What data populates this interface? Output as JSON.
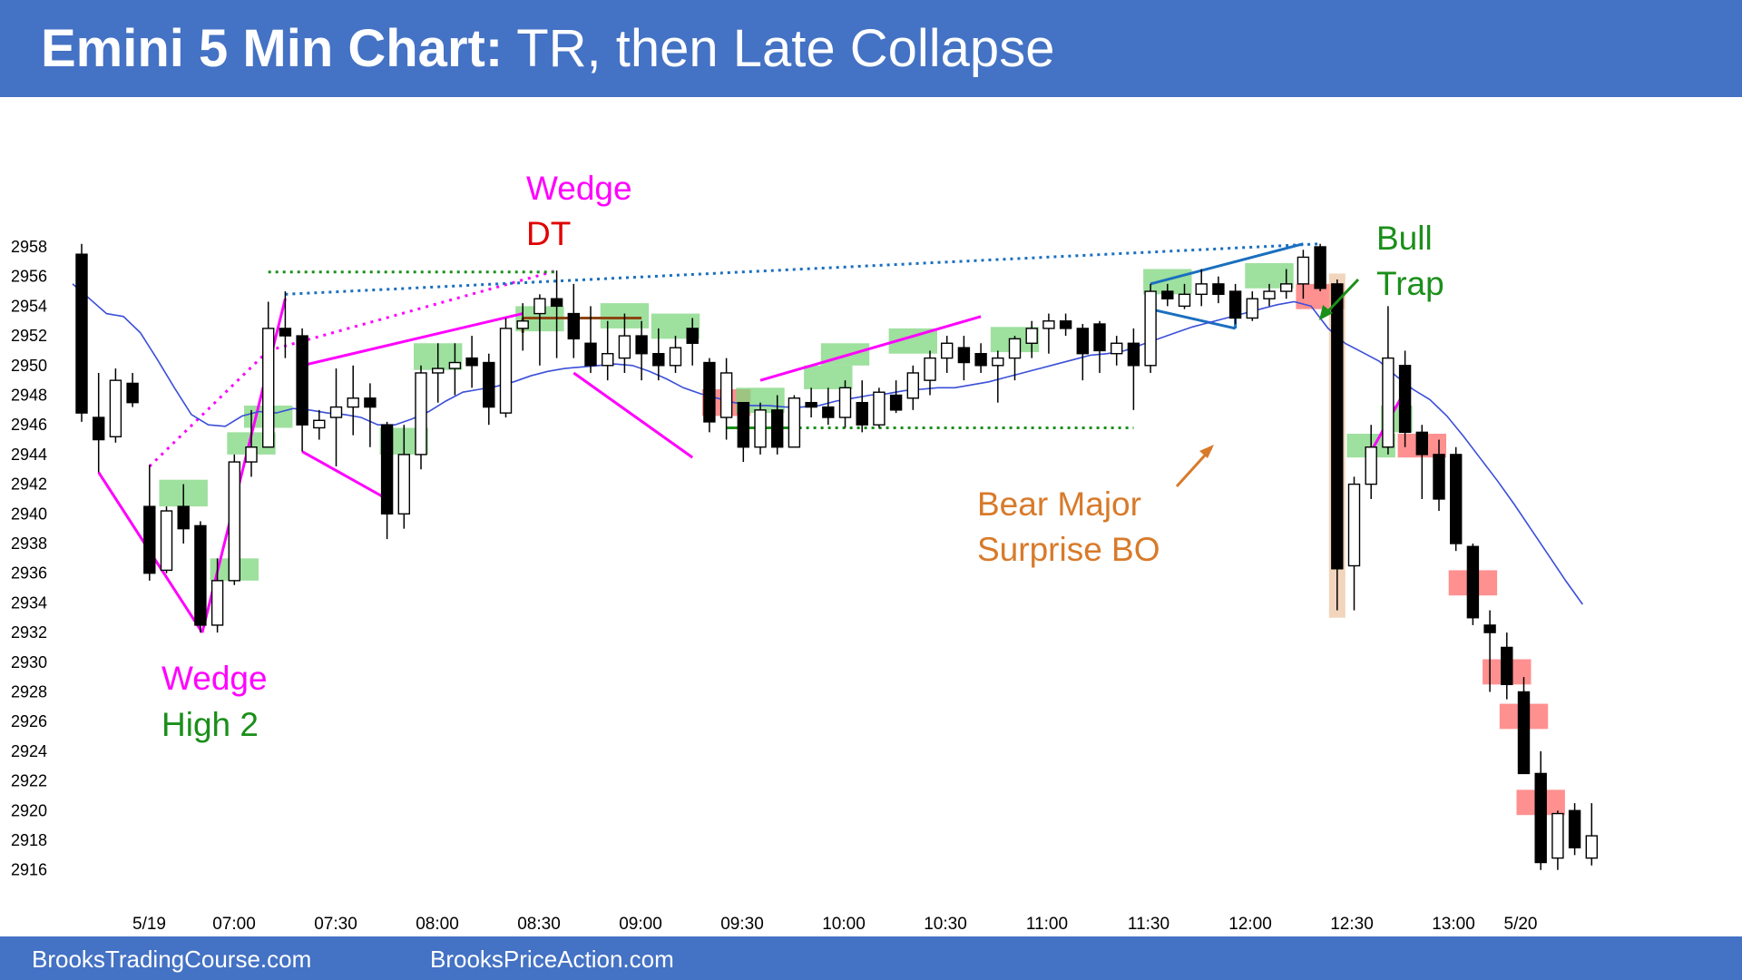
{
  "title": {
    "bold": "Emini 5 Min Chart:",
    "rest": " TR, then Late Collapse"
  },
  "footer": {
    "left": "BrooksTradingCourse.com",
    "right": "BrooksPriceAction.com"
  },
  "colors": {
    "header": "#4472c4",
    "bull_highlight": "#7ed67e",
    "bear_highlight": "#ff6b6b",
    "ema": "#3a4fd8",
    "annotation_magenta": "#ff00ff",
    "annotation_green": "#1a8f1a",
    "annotation_red": "#e00000",
    "annotation_orange": "#d87a2a",
    "trendline_blue": "#1a6fbf"
  },
  "chart_data": {
    "type": "candlestick",
    "instrument": "Emini",
    "timeframe": "5 Min",
    "y_ticks": [
      2958,
      2956,
      2954,
      2952,
      2950,
      2948,
      2946,
      2944,
      2942,
      2940,
      2938,
      2936,
      2934,
      2932,
      2930,
      2928,
      2926,
      2924,
      2922,
      2920,
      2918,
      2916
    ],
    "x_ticks": [
      "5/19",
      "07:00",
      "07:30",
      "08:00",
      "08:30",
      "09:00",
      "09:30",
      "10:00",
      "10:30",
      "11:00",
      "11:30",
      "12:00",
      "12:30",
      "13:00",
      "5/20"
    ],
    "candles": [
      {
        "o": 2957.5,
        "h": 2958.2,
        "l": 2946.2,
        "c": 2946.8
      },
      {
        "o": 2946.5,
        "h": 2949.5,
        "l": 2942.8,
        "c": 2945.0
      },
      {
        "o": 2945.2,
        "h": 2949.8,
        "l": 2944.8,
        "c": 2949.0
      },
      {
        "o": 2948.8,
        "h": 2949.5,
        "l": 2947.2,
        "c": 2947.5
      },
      {
        "o": 2940.5,
        "h": 2943.3,
        "l": 2935.5,
        "c": 2936.0
      },
      {
        "o": 2936.2,
        "h": 2940.5,
        "l": 2936.0,
        "c": 2940.2
      },
      {
        "o": 2940.5,
        "h": 2942.0,
        "l": 2938.0,
        "c": 2939.0
      },
      {
        "o": 2939.2,
        "h": 2939.5,
        "l": 2932.0,
        "c": 2932.5
      },
      {
        "o": 2932.5,
        "h": 2937.0,
        "l": 2932.0,
        "c": 2935.5
      },
      {
        "o": 2935.5,
        "h": 2944.0,
        "l": 2935.2,
        "c": 2943.5
      },
      {
        "o": 2943.5,
        "h": 2947.0,
        "l": 2942.5,
        "c": 2944.5
      },
      {
        "o": 2944.5,
        "h": 2954.3,
        "l": 2944.5,
        "c": 2952.5
      },
      {
        "o": 2952.5,
        "h": 2955.0,
        "l": 2950.5,
        "c": 2952.0
      },
      {
        "o": 2952.0,
        "h": 2952.5,
        "l": 2944.2,
        "c": 2946.0
      },
      {
        "o": 2945.8,
        "h": 2947.0,
        "l": 2945.0,
        "c": 2946.3
      },
      {
        "o": 2946.5,
        "h": 2949.8,
        "l": 2943.2,
        "c": 2947.2
      },
      {
        "o": 2947.2,
        "h": 2950.0,
        "l": 2945.3,
        "c": 2947.8
      },
      {
        "o": 2947.8,
        "h": 2948.8,
        "l": 2944.5,
        "c": 2947.2
      },
      {
        "o": 2946.0,
        "h": 2946.2,
        "l": 2938.3,
        "c": 2940.0
      },
      {
        "o": 2940.0,
        "h": 2946.0,
        "l": 2939.0,
        "c": 2944.0
      },
      {
        "o": 2944.0,
        "h": 2950.0,
        "l": 2943.0,
        "c": 2949.5
      },
      {
        "o": 2949.5,
        "h": 2951.5,
        "l": 2947.5,
        "c": 2949.8
      },
      {
        "o": 2949.8,
        "h": 2951.5,
        "l": 2948.0,
        "c": 2950.2
      },
      {
        "o": 2950.5,
        "h": 2952.0,
        "l": 2948.5,
        "c": 2950.0
      },
      {
        "o": 2950.2,
        "h": 2950.8,
        "l": 2946.0,
        "c": 2947.2
      },
      {
        "o": 2946.8,
        "h": 2953.2,
        "l": 2946.5,
        "c": 2952.5
      },
      {
        "o": 2952.5,
        "h": 2954.2,
        "l": 2951.0,
        "c": 2953.0
      },
      {
        "o": 2953.5,
        "h": 2954.8,
        "l": 2950.0,
        "c": 2954.5
      },
      {
        "o": 2954.5,
        "h": 2956.4,
        "l": 2950.5,
        "c": 2954.0
      },
      {
        "o": 2953.5,
        "h": 2955.5,
        "l": 2950.5,
        "c": 2951.8
      },
      {
        "o": 2951.5,
        "h": 2954.0,
        "l": 2949.5,
        "c": 2950.0
      },
      {
        "o": 2950.0,
        "h": 2953.0,
        "l": 2949.0,
        "c": 2950.8
      },
      {
        "o": 2950.5,
        "h": 2953.5,
        "l": 2949.5,
        "c": 2952.0
      },
      {
        "o": 2952.0,
        "h": 2953.0,
        "l": 2949.0,
        "c": 2950.8
      },
      {
        "o": 2950.8,
        "h": 2952.5,
        "l": 2949.0,
        "c": 2950.0
      },
      {
        "o": 2950.0,
        "h": 2952.0,
        "l": 2949.5,
        "c": 2951.2
      },
      {
        "o": 2952.5,
        "h": 2953.2,
        "l": 2950.0,
        "c": 2951.5
      },
      {
        "o": 2950.2,
        "h": 2950.5,
        "l": 2945.5,
        "c": 2946.2
      },
      {
        "o": 2946.5,
        "h": 2950.5,
        "l": 2945.0,
        "c": 2949.5
      },
      {
        "o": 2947.5,
        "h": 2947.5,
        "l": 2943.5,
        "c": 2944.5
      },
      {
        "o": 2944.5,
        "h": 2947.5,
        "l": 2944.0,
        "c": 2947.0
      },
      {
        "o": 2947.0,
        "h": 2948.0,
        "l": 2944.0,
        "c": 2944.5
      },
      {
        "o": 2944.5,
        "h": 2948.0,
        "l": 2944.5,
        "c": 2947.8
      },
      {
        "o": 2947.5,
        "h": 2948.5,
        "l": 2946.5,
        "c": 2947.2
      },
      {
        "o": 2947.2,
        "h": 2948.5,
        "l": 2946.0,
        "c": 2946.5
      },
      {
        "o": 2946.5,
        "h": 2949.0,
        "l": 2945.8,
        "c": 2948.5
      },
      {
        "o": 2947.5,
        "h": 2949.0,
        "l": 2945.5,
        "c": 2946.0
      },
      {
        "o": 2946.0,
        "h": 2948.5,
        "l": 2945.8,
        "c": 2948.2
      },
      {
        "o": 2948.0,
        "h": 2949.0,
        "l": 2946.8,
        "c": 2947.0
      },
      {
        "o": 2947.8,
        "h": 2950.0,
        "l": 2947.0,
        "c": 2949.5
      },
      {
        "o": 2949.0,
        "h": 2951.0,
        "l": 2948.0,
        "c": 2950.5
      },
      {
        "o": 2950.5,
        "h": 2952.0,
        "l": 2949.5,
        "c": 2951.5
      },
      {
        "o": 2951.2,
        "h": 2952.0,
        "l": 2949.0,
        "c": 2950.2
      },
      {
        "o": 2950.8,
        "h": 2951.5,
        "l": 2949.5,
        "c": 2950.0
      },
      {
        "o": 2950.0,
        "h": 2951.0,
        "l": 2947.5,
        "c": 2950.5
      },
      {
        "o": 2950.5,
        "h": 2952.0,
        "l": 2949.0,
        "c": 2951.8
      },
      {
        "o": 2951.5,
        "h": 2953.0,
        "l": 2950.5,
        "c": 2952.5
      },
      {
        "o": 2952.5,
        "h": 2953.5,
        "l": 2950.8,
        "c": 2953.0
      },
      {
        "o": 2953.0,
        "h": 2953.5,
        "l": 2952.0,
        "c": 2952.5
      },
      {
        "o": 2952.5,
        "h": 2952.8,
        "l": 2949.0,
        "c": 2950.8
      },
      {
        "o": 2952.8,
        "h": 2953.0,
        "l": 2949.5,
        "c": 2951.0
      },
      {
        "o": 2950.8,
        "h": 2952.0,
        "l": 2950.0,
        "c": 2951.5
      },
      {
        "o": 2951.5,
        "h": 2952.5,
        "l": 2947.0,
        "c": 2950.0
      },
      {
        "o": 2950.0,
        "h": 2955.5,
        "l": 2949.5,
        "c": 2955.0
      },
      {
        "o": 2955.0,
        "h": 2955.5,
        "l": 2954.0,
        "c": 2954.5
      },
      {
        "o": 2954.0,
        "h": 2955.5,
        "l": 2953.8,
        "c": 2954.8
      },
      {
        "o": 2954.8,
        "h": 2956.5,
        "l": 2954.0,
        "c": 2955.5
      },
      {
        "o": 2955.5,
        "h": 2956.0,
        "l": 2954.2,
        "c": 2954.8
      },
      {
        "o": 2955.0,
        "h": 2955.5,
        "l": 2952.8,
        "c": 2953.2
      },
      {
        "o": 2953.2,
        "h": 2955.0,
        "l": 2953.0,
        "c": 2954.5
      },
      {
        "o": 2954.5,
        "h": 2955.5,
        "l": 2954.0,
        "c": 2955.0
      },
      {
        "o": 2955.0,
        "h": 2956.5,
        "l": 2954.5,
        "c": 2955.5
      },
      {
        "o": 2955.5,
        "h": 2957.8,
        "l": 2954.5,
        "c": 2957.3
      },
      {
        "o": 2958.0,
        "h": 2958.2,
        "l": 2955.0,
        "c": 2955.2
      },
      {
        "o": 2955.5,
        "h": 2955.8,
        "l": 2933.5,
        "c": 2936.3
      },
      {
        "o": 2936.5,
        "h": 2942.5,
        "l": 2933.5,
        "c": 2942.0
      },
      {
        "o": 2942.0,
        "h": 2946.0,
        "l": 2941.0,
        "c": 2944.5
      },
      {
        "o": 2944.5,
        "h": 2954.0,
        "l": 2944.0,
        "c": 2950.5
      },
      {
        "o": 2950.0,
        "h": 2951.0,
        "l": 2944.5,
        "c": 2945.5
      },
      {
        "o": 2945.5,
        "h": 2946.0,
        "l": 2941.0,
        "c": 2944.0
      },
      {
        "o": 2944.0,
        "h": 2945.0,
        "l": 2940.2,
        "c": 2941.0
      },
      {
        "o": 2944.0,
        "h": 2944.5,
        "l": 2937.5,
        "c": 2938.0
      },
      {
        "o": 2937.8,
        "h": 2938.0,
        "l": 2932.5,
        "c": 2933.0
      },
      {
        "o": 2932.5,
        "h": 2933.5,
        "l": 2928.0,
        "c": 2932.0
      },
      {
        "o": 2931.0,
        "h": 2932.0,
        "l": 2927.5,
        "c": 2928.5
      },
      {
        "o": 2928.0,
        "h": 2929.0,
        "l": 2922.5,
        "c": 2922.5
      },
      {
        "o": 2922.5,
        "h": 2924.0,
        "l": 2916.0,
        "c": 2916.5
      },
      {
        "o": 2916.8,
        "h": 2920.0,
        "l": 2916.0,
        "c": 2919.8
      },
      {
        "o": 2920.0,
        "h": 2920.5,
        "l": 2917.0,
        "c": 2917.5
      },
      {
        "o": 2916.8,
        "h": 2920.5,
        "l": 2916.3,
        "c": 2918.3
      }
    ],
    "ema": [
      2955.5,
      2954.5,
      2953.5,
      2953.3,
      2952.2,
      2950.4,
      2948.5,
      2946.7,
      2946.0,
      2945.9,
      2946.6,
      2946.9,
      2946.8,
      2947.1,
      2947.0,
      2946.8,
      2946.7,
      2946.5,
      2946.0,
      2946.0,
      2946.4,
      2946.9,
      2947.6,
      2948.2,
      2948.4,
      2948.6,
      2948.9,
      2949.3,
      2949.6,
      2949.8,
      2949.9,
      2950.0,
      2950.1,
      2950.0,
      2949.6,
      2949.1,
      2948.5,
      2948.1,
      2947.8,
      2947.5,
      2947.3,
      2947.3,
      2947.2,
      2947.2,
      2947.3,
      2947.6,
      2947.8,
      2948.0,
      2948.1,
      2948.3,
      2948.4,
      2948.5,
      2948.5,
      2948.7,
      2948.9,
      2949.2,
      2949.5,
      2949.8,
      2950.1,
      2950.4,
      2950.7,
      2950.8,
      2951.0,
      2951.4,
      2951.8,
      2952.2,
      2952.6,
      2952.9,
      2953.2,
      2953.5,
      2953.8,
      2954.1,
      2954.3,
      2954.0,
      2952.5,
      2951.5,
      2950.9,
      2950.3,
      2949.3,
      2948.4,
      2947.7,
      2946.6,
      2945.2,
      2943.7,
      2942.2,
      2940.6,
      2938.9,
      2937.2,
      2935.5,
      2933.9
    ],
    "highlights": [
      {
        "bar": 5,
        "bar2": 7,
        "low": 2940.5,
        "high": 2942.3,
        "kind": "bull"
      },
      {
        "bar": 8,
        "bar2": 10,
        "low": 2935.5,
        "high": 2937.0,
        "kind": "bull"
      },
      {
        "bar": 9,
        "bar2": 11,
        "low": 2944.0,
        "high": 2945.5,
        "kind": "bull"
      },
      {
        "bar": 10,
        "bar2": 12,
        "low": 2945.8,
        "high": 2947.3,
        "kind": "bull"
      },
      {
        "bar": 18,
        "bar2": 20,
        "low": 2944.0,
        "high": 2945.8,
        "kind": "bull"
      },
      {
        "bar": 20,
        "bar2": 22,
        "low": 2949.7,
        "high": 2951.5,
        "kind": "bull"
      },
      {
        "bar": 26,
        "bar2": 28,
        "low": 2952.3,
        "high": 2954.0,
        "kind": "bull"
      },
      {
        "bar": 31,
        "bar2": 33,
        "low": 2952.5,
        "high": 2954.2,
        "kind": "bull"
      },
      {
        "bar": 34,
        "bar2": 36,
        "low": 2951.8,
        "high": 2953.5,
        "kind": "bull"
      },
      {
        "bar": 37,
        "bar2": 39,
        "low": 2946.6,
        "high": 2948.4,
        "kind": "bear"
      },
      {
        "bar": 39,
        "bar2": 41,
        "low": 2946.8,
        "high": 2948.5,
        "kind": "bull"
      },
      {
        "bar": 43,
        "bar2": 45,
        "low": 2948.4,
        "high": 2950.0,
        "kind": "bull"
      },
      {
        "bar": 44,
        "bar2": 46,
        "low": 2950.0,
        "high": 2951.5,
        "kind": "bull"
      },
      {
        "bar": 48,
        "bar2": 50,
        "low": 2950.8,
        "high": 2952.5,
        "kind": "bull"
      },
      {
        "bar": 54,
        "bar2": 56,
        "low": 2950.9,
        "high": 2952.6,
        "kind": "bull"
      },
      {
        "bar": 63,
        "bar2": 65,
        "low": 2954.8,
        "high": 2956.5,
        "kind": "bull"
      },
      {
        "bar": 69,
        "bar2": 71,
        "low": 2955.2,
        "high": 2956.9,
        "kind": "bull"
      },
      {
        "bar": 72,
        "bar2": 74,
        "low": 2953.8,
        "high": 2955.5,
        "kind": "bear"
      },
      {
        "bar": 75,
        "bar2": 77,
        "low": 2943.8,
        "high": 2945.4,
        "kind": "bull"
      },
      {
        "bar": 77,
        "bar2": 78,
        "low": 2945.5,
        "high": 2947.3,
        "kind": "bull"
      },
      {
        "bar": 78,
        "bar2": 80,
        "low": 2943.8,
        "high": 2945.4,
        "kind": "bear"
      },
      {
        "bar": 81,
        "bar2": 83,
        "low": 2934.5,
        "high": 2936.2,
        "kind": "bear"
      },
      {
        "bar": 83,
        "bar2": 85,
        "low": 2928.5,
        "high": 2930.2,
        "kind": "bear"
      },
      {
        "bar": 84,
        "bar2": 86,
        "low": 2925.5,
        "high": 2927.2,
        "kind": "bear"
      },
      {
        "bar": 85,
        "bar2": 87,
        "low": 2919.7,
        "high": 2921.4,
        "kind": "bear"
      }
    ],
    "annotations": [
      {
        "text": "Wedge",
        "color": "magenta"
      },
      {
        "text": "DT",
        "color": "red"
      },
      {
        "text": "Wedge",
        "color": "magenta"
      },
      {
        "text": "High 2",
        "color": "green"
      },
      {
        "text": "Bull",
        "color": "green"
      },
      {
        "text": "Trap",
        "color": "green"
      },
      {
        "text": "Bear Major",
        "color": "orange"
      },
      {
        "text": "Surprise BO",
        "color": "orange"
      }
    ]
  }
}
